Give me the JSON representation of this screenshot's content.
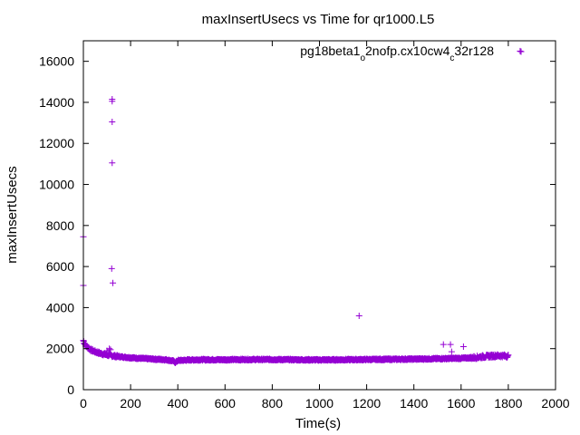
{
  "chart_data": {
    "type": "scatter",
    "title": "maxInsertUsecs vs Time for qr1000.L5",
    "xlabel": "Time(s)",
    "ylabel": "maxInsertUsecs",
    "xlim": [
      0,
      2000
    ],
    "ylim": [
      0,
      17000
    ],
    "xticks": [
      0,
      200,
      400,
      600,
      800,
      1000,
      1200,
      1400,
      1600,
      1800,
      2000
    ],
    "yticks": [
      0,
      2000,
      4000,
      6000,
      8000,
      10000,
      12000,
      14000,
      16000
    ],
    "grid": false,
    "legend_position": "top-right",
    "series": [
      {
        "name_parts": [
          {
            "t": "pg18beta1",
            "sub": false
          },
          {
            "t": "o",
            "sub": true
          },
          {
            "t": "2nofp.cx10cw4",
            "sub": false
          },
          {
            "t": "c",
            "sub": true
          },
          {
            "t": "32r128",
            "sub": false
          }
        ],
        "color": "#9400d3",
        "marker": "plus",
        "baseline": [
          [
            0,
            2400
          ],
          [
            5,
            2250
          ],
          [
            10,
            2150
          ],
          [
            20,
            2050
          ],
          [
            30,
            1950
          ],
          [
            50,
            1850
          ],
          [
            75,
            1760
          ],
          [
            100,
            1700
          ],
          [
            130,
            1640
          ],
          [
            160,
            1600
          ],
          [
            200,
            1560
          ],
          [
            250,
            1520
          ],
          [
            300,
            1490
          ],
          [
            350,
            1460
          ],
          [
            380,
            1400
          ],
          [
            390,
            1330
          ],
          [
            400,
            1420
          ],
          [
            450,
            1450
          ],
          [
            500,
            1460
          ],
          [
            600,
            1460
          ],
          [
            700,
            1470
          ],
          [
            800,
            1470
          ],
          [
            900,
            1460
          ],
          [
            1000,
            1450
          ],
          [
            1100,
            1460
          ],
          [
            1200,
            1470
          ],
          [
            1300,
            1480
          ],
          [
            1400,
            1490
          ],
          [
            1500,
            1510
          ],
          [
            1600,
            1530
          ],
          [
            1650,
            1560
          ],
          [
            1700,
            1620
          ],
          [
            1750,
            1660
          ],
          [
            1800,
            1640
          ]
        ],
        "outliers": [
          [
            0,
            7450
          ],
          [
            0,
            5080
          ],
          [
            122,
            14150
          ],
          [
            122,
            14050
          ],
          [
            122,
            13050
          ],
          [
            122,
            11050
          ],
          [
            120,
            5900
          ],
          [
            125,
            5200
          ],
          [
            110,
            2000
          ],
          [
            115,
            1950
          ],
          [
            100,
            1900
          ],
          [
            1168,
            3600
          ],
          [
            1525,
            2200
          ],
          [
            1555,
            2200
          ],
          [
            1560,
            1850
          ],
          [
            1610,
            2100
          ],
          [
            1850,
            16500
          ]
        ]
      }
    ]
  }
}
